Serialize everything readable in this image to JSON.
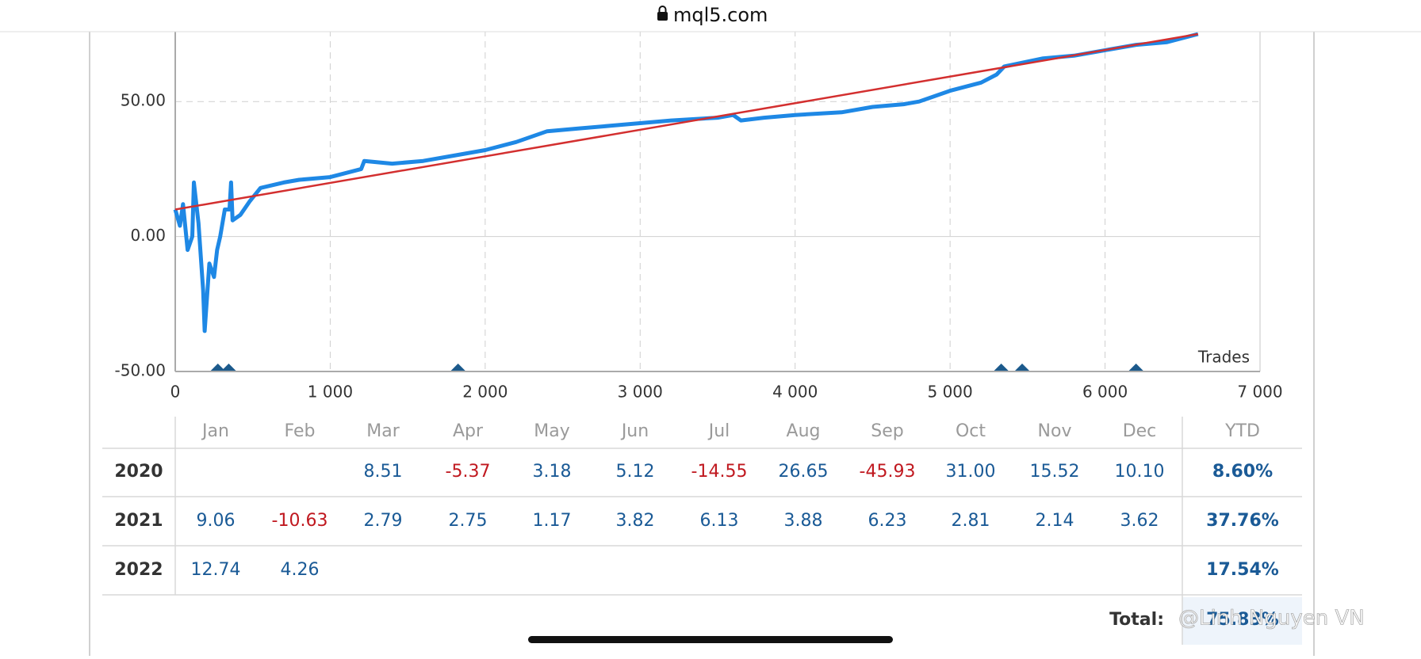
{
  "browser": {
    "url": "mql5.com"
  },
  "chart_data": {
    "type": "line",
    "x_label": "Trades",
    "xlim": [
      0,
      7000
    ],
    "ylim": [
      -50,
      75
    ],
    "xticks": [
      0,
      {
        "value": 1000,
        "label": "1 000"
      },
      {
        "value": 2000,
        "label": "2 000"
      },
      {
        "value": 3000,
        "label": "3 000"
      },
      {
        "value": 4000,
        "label": "4 000"
      },
      {
        "value": 5000,
        "label": "5 000"
      },
      {
        "value": 6000,
        "label": "6 000"
      },
      {
        "value": 7000,
        "label": "7 000"
      }
    ],
    "yticks": [
      {
        "value": -50,
        "label": "-50.00"
      },
      {
        "value": 0,
        "label": "0.00"
      },
      {
        "value": 50,
        "label": "50.00"
      }
    ],
    "grid": true,
    "series": [
      {
        "color": "#1e88e5",
        "x": [
          0,
          30,
          50,
          80,
          110,
          120,
          150,
          180,
          190,
          220,
          250,
          270,
          290,
          320,
          350,
          360,
          370,
          420,
          480,
          550,
          700,
          800,
          1000,
          1200,
          1220,
          1400,
          1600,
          1800,
          2000,
          2200,
          2400,
          2600,
          2800,
          3000,
          3200,
          3500,
          3600,
          3650,
          3800,
          4000,
          4300,
          4500,
          4700,
          4800,
          5000,
          5200,
          5300,
          5350,
          5600,
          5800,
          6000,
          6200,
          6400,
          6600
        ],
        "values": [
          10,
          4,
          12,
          -5,
          0,
          20,
          5,
          -20,
          -35,
          -10,
          -15,
          -5,
          0,
          10,
          10,
          20,
          6,
          8,
          13,
          18,
          20,
          21,
          22,
          25,
          28,
          27,
          28,
          30,
          32,
          35,
          39,
          40,
          41,
          42,
          43,
          44,
          45,
          43,
          44,
          45,
          46,
          48,
          49,
          50,
          54,
          57,
          60,
          63,
          66,
          67,
          69,
          71,
          72,
          75
        ]
      },
      {
        "color": "#d32f2f",
        "x": [
          0,
          6600
        ],
        "values": [
          10,
          75
        ]
      }
    ],
    "events_x": [
      275,
      345,
      1825,
      5330,
      5465,
      6200
    ],
    "events_color": "#1c5a8c"
  },
  "table": {
    "months": [
      "Jan",
      "Feb",
      "Mar",
      "Apr",
      "May",
      "Jun",
      "Jul",
      "Aug",
      "Sep",
      "Oct",
      "Nov",
      "Dec"
    ],
    "ytd_header": "YTD",
    "rows": [
      {
        "year": "2020",
        "months": [
          null,
          null,
          "8.51",
          "-5.37",
          "3.18",
          "5.12",
          "-14.55",
          "26.65",
          "-45.93",
          "31.00",
          "15.52",
          "10.10"
        ],
        "ytd": "8.60%"
      },
      {
        "year": "2021",
        "months": [
          "9.06",
          "-10.63",
          "2.79",
          "2.75",
          "1.17",
          "3.82",
          "6.13",
          "3.88",
          "6.23",
          "2.81",
          "2.14",
          "3.62"
        ],
        "ytd": "37.76%"
      },
      {
        "year": "2022",
        "months": [
          "12.74",
          "4.26",
          null,
          null,
          null,
          null,
          null,
          null,
          null,
          null,
          null,
          null
        ],
        "ytd": "17.54%"
      }
    ],
    "total": {
      "label": "Total:",
      "value": "75.83%"
    }
  },
  "watermark": "@Linh Nguyen VN"
}
